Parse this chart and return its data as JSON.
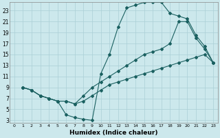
{
  "bg_color": "#cce8ec",
  "grid_color": "#aacfd6",
  "line_color": "#1a6060",
  "xlabel": "Humidex (Indice chaleur)",
  "xlim": [
    -0.5,
    23.5
  ],
  "ylim": [
    2.5,
    24.5
  ],
  "xticks": [
    0,
    1,
    2,
    3,
    4,
    5,
    6,
    7,
    8,
    9,
    10,
    11,
    12,
    13,
    14,
    15,
    16,
    17,
    18,
    19,
    20,
    21,
    22,
    23
  ],
  "yticks": [
    3,
    5,
    7,
    9,
    11,
    13,
    15,
    17,
    19,
    21,
    23
  ],
  "curve1_x": [
    1,
    2,
    3,
    4,
    5,
    6,
    7,
    8,
    9,
    10,
    11,
    12,
    13,
    14,
    15,
    16,
    17,
    18,
    19,
    20,
    21,
    22,
    23
  ],
  "curve1_y": [
    9.0,
    8.5,
    7.5,
    7.0,
    6.5,
    4.0,
    3.5,
    3.2,
    3.0,
    11.5,
    15.0,
    20.0,
    23.5,
    24.0,
    24.5,
    24.5,
    24.5,
    22.5,
    22.0,
    21.5,
    18.5,
    16.5,
    13.5
  ],
  "curve2_x": [
    1,
    2,
    3,
    4,
    5,
    6,
    7,
    8,
    9,
    10,
    11,
    12,
    13,
    14,
    15,
    16,
    17,
    18,
    19,
    20,
    21,
    22,
    23
  ],
  "curve2_y": [
    9.0,
    8.5,
    7.5,
    7.0,
    6.5,
    6.5,
    6.0,
    7.5,
    9.0,
    10.0,
    11.0,
    12.0,
    13.0,
    14.0,
    15.0,
    15.5,
    16.0,
    17.0,
    21.0,
    21.0,
    18.0,
    16.0,
    13.5
  ],
  "curve3_x": [
    1,
    2,
    3,
    4,
    5,
    6,
    7,
    8,
    9,
    10,
    11,
    12,
    13,
    14,
    15,
    16,
    17,
    18,
    19,
    20,
    21,
    22,
    23
  ],
  "curve3_y": [
    9.0,
    8.5,
    7.5,
    7.0,
    6.5,
    6.5,
    6.0,
    6.5,
    7.5,
    8.5,
    9.5,
    10.0,
    10.5,
    11.0,
    11.5,
    12.0,
    12.5,
    13.0,
    13.5,
    14.0,
    14.5,
    15.0,
    13.5
  ]
}
